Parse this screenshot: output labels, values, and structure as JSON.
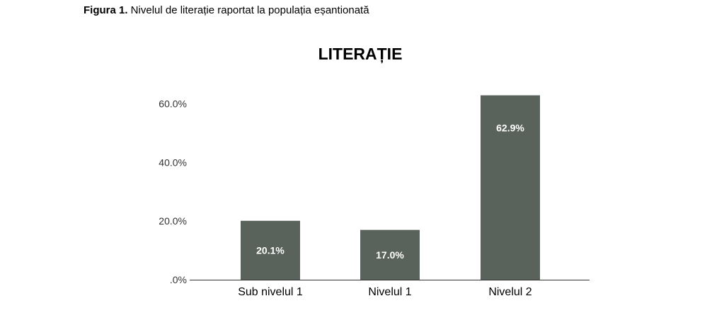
{
  "figure_caption": {
    "label": "Figura 1.",
    "text": " Nivelul de literație raportat la populația eșantionată"
  },
  "chart_data": {
    "type": "bar",
    "title": "LITERAȚIE",
    "xlabel": "",
    "ylabel": "",
    "categories": [
      "Sub nivelul 1",
      "Nivelul 1",
      "Nivelul 2"
    ],
    "values": [
      20.1,
      17.0,
      62.9
    ],
    "data_labels": [
      "20.1%",
      "17.0%",
      "62.9%"
    ],
    "ylim": [
      0,
      65
    ],
    "yticks": [
      0,
      20,
      40,
      60
    ],
    "ytick_labels": [
      ".0%",
      "20.0%",
      "40.0%",
      "60.0%"
    ],
    "bar_color": "#5a625c",
    "grid": false,
    "legend": "none"
  }
}
